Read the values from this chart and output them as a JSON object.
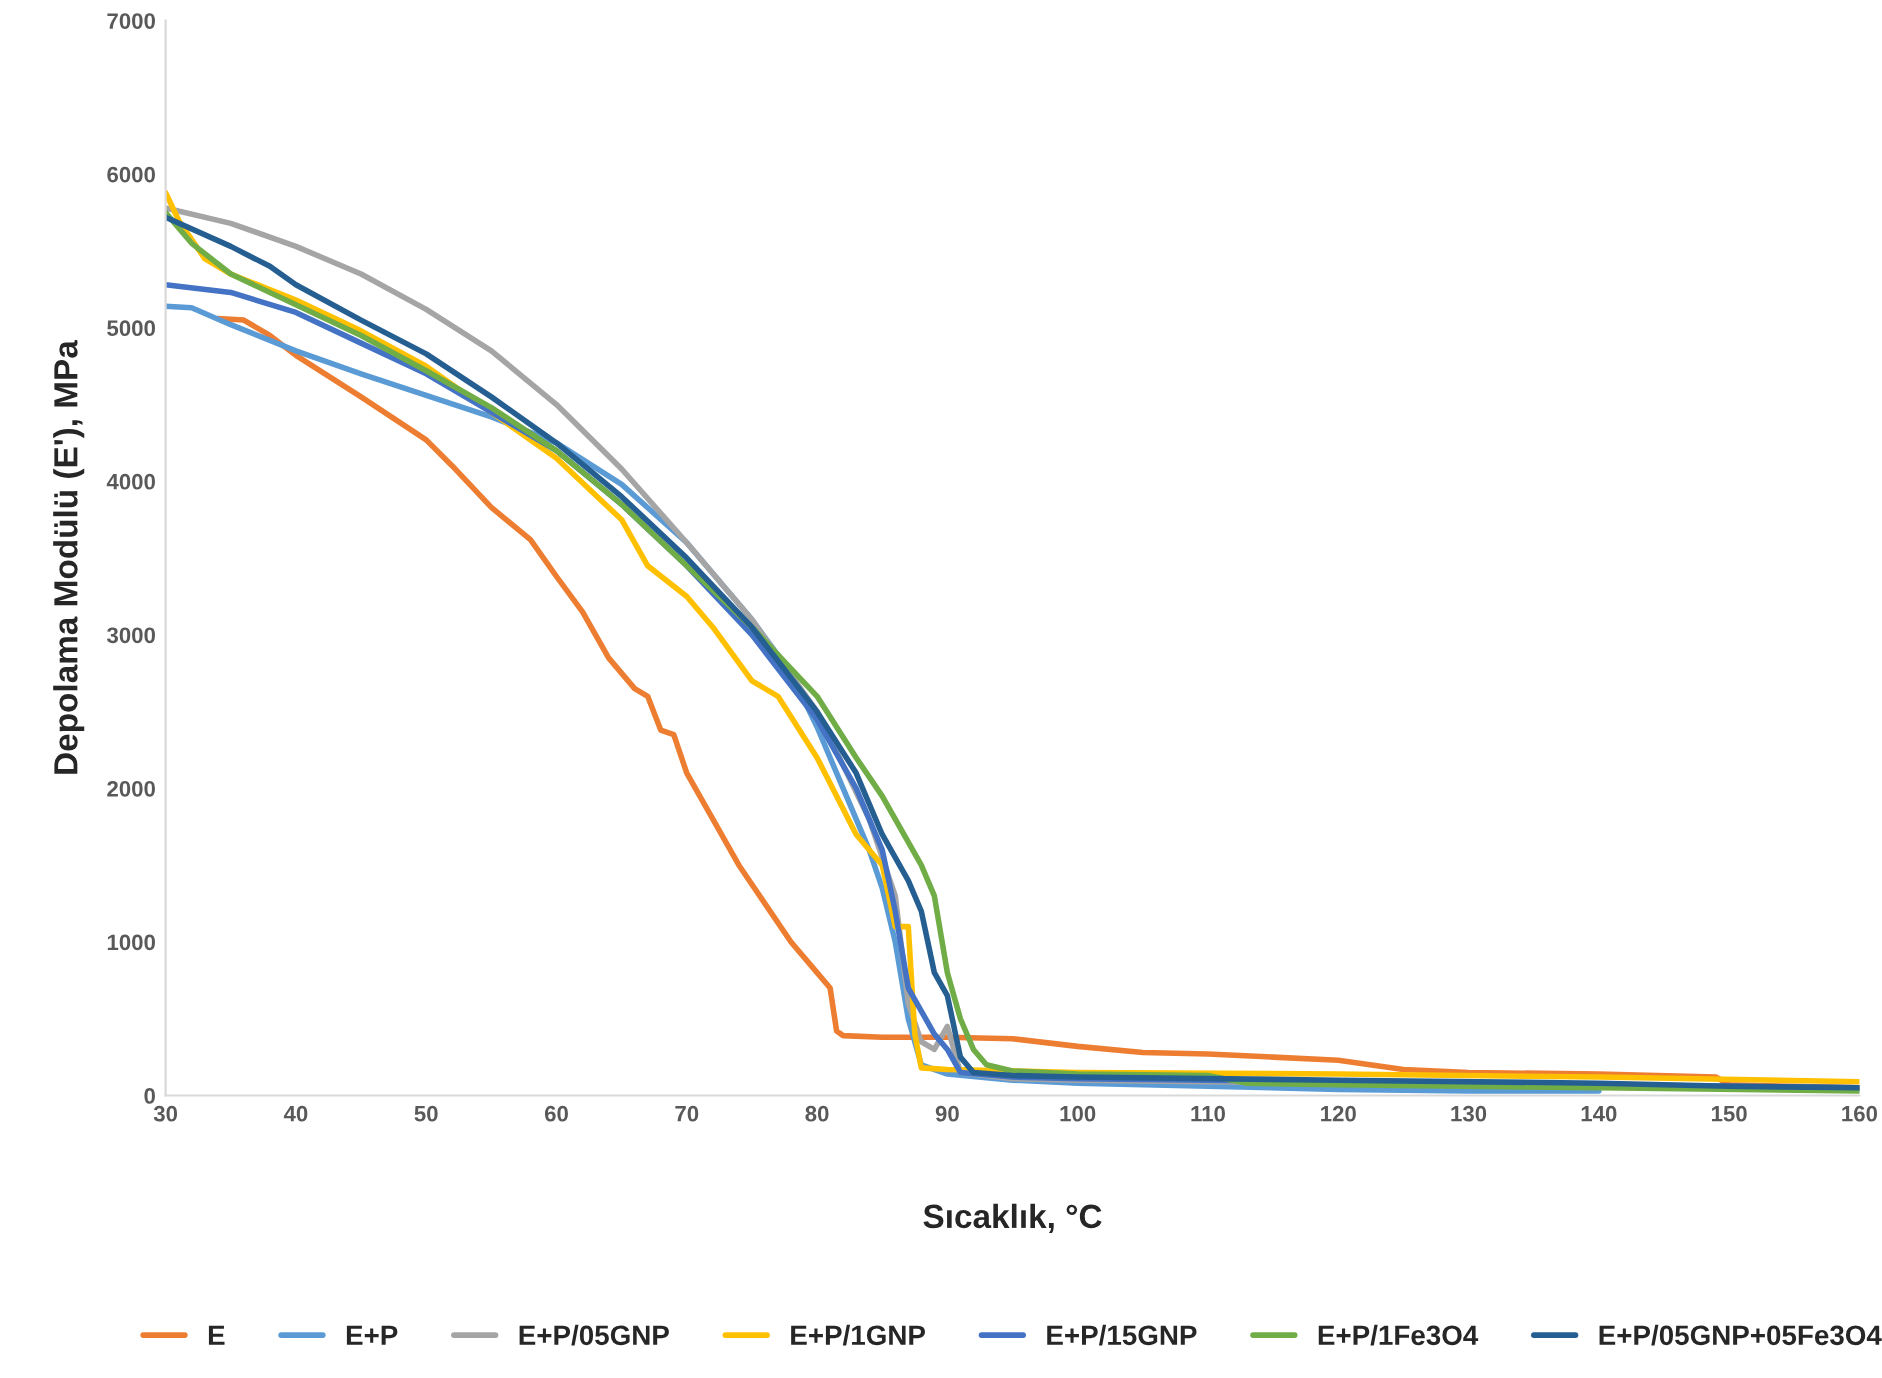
{
  "chart_data": {
    "type": "line",
    "xlabel": "Sıcaklık, °C",
    "ylabel": "Depolama Modülü (E'), MPa",
    "xlim": [
      30,
      160
    ],
    "ylim": [
      0,
      7000
    ],
    "xticks": [
      30,
      40,
      50,
      60,
      70,
      80,
      90,
      100,
      110,
      120,
      130,
      140,
      150,
      160
    ],
    "yticks": [
      0,
      1000,
      2000,
      3000,
      4000,
      5000,
      6000,
      7000
    ],
    "grid": false,
    "legend": "bottom",
    "marker": "none",
    "line_style": "solid",
    "series": [
      {
        "name": "E",
        "color": "#ed7d31",
        "x": [
          34,
          36,
          38,
          40,
          45,
          50,
          52,
          55,
          58,
          60,
          62,
          64,
          66,
          67,
          68,
          69,
          70,
          72,
          74,
          76,
          78,
          80,
          81,
          81.5,
          82,
          85,
          90,
          95,
          100,
          105,
          110,
          115,
          120,
          125,
          130,
          140,
          149,
          150,
          155,
          160
        ],
        "values": [
          5060,
          5050,
          4950,
          4820,
          4550,
          4270,
          4100,
          3830,
          3620,
          3380,
          3150,
          2850,
          2650,
          2600,
          2380,
          2350,
          2100,
          1800,
          1500,
          1250,
          1000,
          800,
          700,
          420,
          390,
          380,
          380,
          370,
          320,
          280,
          270,
          250,
          230,
          170,
          150,
          140,
          120,
          70,
          60,
          50
        ]
      },
      {
        "name": "E+P",
        "color": "#5b9bd5",
        "x": [
          30,
          32,
          35,
          40,
          45,
          50,
          55,
          60,
          65,
          70,
          75,
          78,
          80,
          82,
          84,
          85,
          86,
          87,
          88,
          90,
          95,
          100,
          110,
          120,
          130,
          140
        ],
        "values": [
          5140,
          5130,
          5020,
          4850,
          4700,
          4560,
          4420,
          4250,
          3980,
          3600,
          3100,
          2750,
          2400,
          2000,
          1600,
          1350,
          1000,
          500,
          200,
          140,
          100,
          80,
          60,
          40,
          30,
          30
        ]
      },
      {
        "name": "E+P/05GNP",
        "color": "#a5a5a5",
        "x": [
          30,
          35,
          40,
          45,
          50,
          55,
          60,
          65,
          70,
          75,
          80,
          84,
          86,
          87,
          88,
          89,
          90,
          91,
          95,
          100,
          120,
          140,
          160
        ],
        "values": [
          5780,
          5680,
          5530,
          5350,
          5120,
          4850,
          4500,
          4080,
          3600,
          3100,
          2500,
          1800,
          1300,
          600,
          350,
          300,
          450,
          150,
          110,
          100,
          80,
          60,
          40
        ]
      },
      {
        "name": "E+P/1GNP",
        "color": "#ffc000",
        "x": [
          30,
          31,
          33,
          35,
          40,
          45,
          50,
          55,
          60,
          65,
          67,
          70,
          72,
          75,
          77,
          80,
          83,
          85,
          86,
          87,
          87.5,
          88,
          90,
          100,
          120,
          140,
          160
        ],
        "values": [
          5880,
          5700,
          5450,
          5350,
          5180,
          4980,
          4750,
          4450,
          4150,
          3750,
          3450,
          3250,
          3050,
          2700,
          2600,
          2200,
          1700,
          1500,
          1100,
          1100,
          400,
          180,
          170,
          150,
          140,
          120,
          90
        ]
      },
      {
        "name": "E+P/15GNP",
        "color": "#4472c4",
        "x": [
          30,
          35,
          40,
          45,
          50,
          55,
          60,
          65,
          70,
          75,
          80,
          83,
          85,
          86,
          87,
          88,
          89,
          90,
          91,
          95,
          100,
          120,
          140,
          160
        ],
        "values": [
          5280,
          5230,
          5100,
          4900,
          4700,
          4450,
          4200,
          3850,
          3450,
          3000,
          2450,
          2000,
          1600,
          1200,
          700,
          550,
          400,
          300,
          150,
          120,
          110,
          90,
          70,
          50
        ]
      },
      {
        "name": "E+P/1Fe3O4",
        "color": "#70ad47",
        "x": [
          30,
          32,
          35,
          40,
          45,
          50,
          55,
          60,
          65,
          70,
          75,
          80,
          83,
          85,
          86,
          88,
          89,
          90,
          91,
          92,
          93,
          95,
          100,
          110,
          113,
          120,
          140,
          160
        ],
        "values": [
          5750,
          5550,
          5350,
          5150,
          4950,
          4720,
          4480,
          4200,
          3850,
          3450,
          3050,
          2600,
          2200,
          1950,
          1800,
          1500,
          1300,
          800,
          500,
          300,
          200,
          160,
          140,
          130,
          80,
          70,
          50,
          30
        ]
      },
      {
        "name": "E+P/05GNP+05Fe3O4",
        "color": "#255e91",
        "x": [
          30,
          35,
          38,
          40,
          45,
          50,
          55,
          60,
          65,
          70,
          75,
          80,
          83,
          85,
          87,
          88,
          89,
          90,
          91,
          92,
          95,
          100,
          120,
          140,
          150,
          160
        ],
        "values": [
          5720,
          5530,
          5400,
          5280,
          5050,
          4830,
          4550,
          4250,
          3900,
          3500,
          3050,
          2500,
          2100,
          1700,
          1400,
          1200,
          800,
          650,
          250,
          150,
          130,
          120,
          100,
          80,
          60,
          50
        ]
      }
    ]
  }
}
